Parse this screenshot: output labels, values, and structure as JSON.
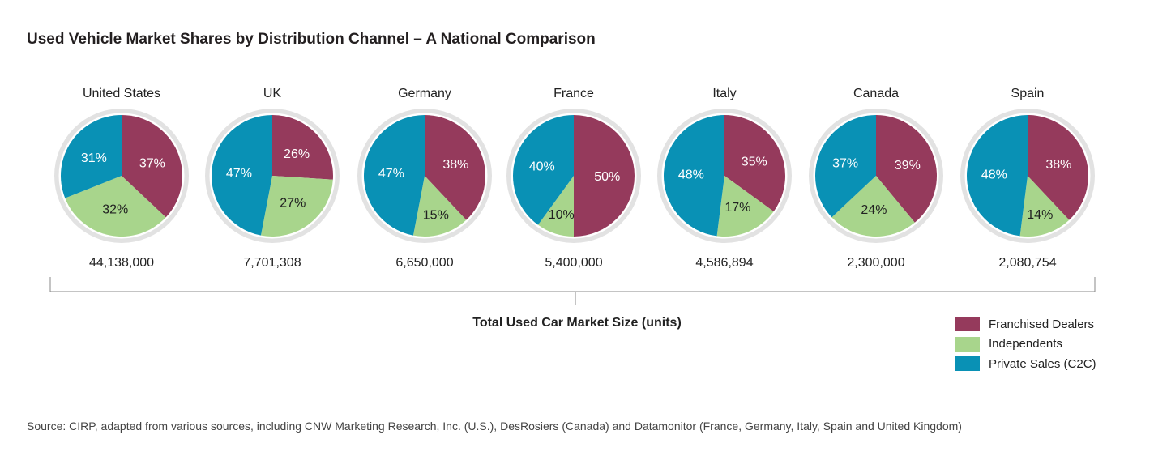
{
  "chart_data": {
    "type": "pie",
    "title": "Used Vehicle Market Shares by Distribution Channel – A National Comparison",
    "xlabel": "Total Used Car Market Size (units)",
    "series_names": [
      "Franchised Dealers",
      "Independents",
      "Private Sales (C2C)"
    ],
    "colors": {
      "Franchised Dealers": "#953a5c",
      "Independents": "#a8d58c",
      "Private Sales (C2C)": "#0991b5"
    },
    "legend_position": "bottom-right",
    "pies": [
      {
        "country": "United States",
        "total": "44,138,000",
        "values": [
          37,
          32,
          31
        ]
      },
      {
        "country": "UK",
        "total": "7,701,308",
        "values": [
          26,
          27,
          47
        ]
      },
      {
        "country": "Germany",
        "total": "6,650,000",
        "values": [
          38,
          15,
          47
        ]
      },
      {
        "country": "France",
        "total": "5,400,000",
        "values": [
          50,
          10,
          40
        ]
      },
      {
        "country": "Italy",
        "total": "4,586,894",
        "values": [
          35,
          17,
          48
        ]
      },
      {
        "country": "Canada",
        "total": "2,300,000",
        "values": [
          39,
          24,
          37
        ]
      },
      {
        "country": "Spain",
        "total": "2,080,754",
        "values": [
          38,
          14,
          48
        ]
      }
    ]
  },
  "source": "Source: CIRP, adapted from various sources, including CNW Marketing Research, Inc. (U.S.), DesRosiers (Canada) and Datamonitor (France, Germany, Italy, Spain and United Kingdom)"
}
